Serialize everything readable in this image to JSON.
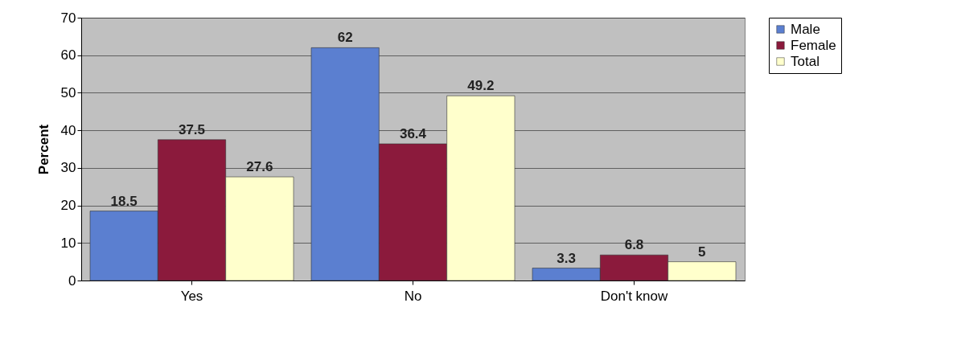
{
  "chart_data": {
    "type": "bar",
    "ylabel": "Percent",
    "categories": [
      "Yes",
      "No",
      "Don't know"
    ],
    "series": [
      {
        "name": "Male",
        "color": "#5b7fd0",
        "values": [
          18.5,
          62,
          3.3
        ]
      },
      {
        "name": "Female",
        "color": "#8b1a3c",
        "values": [
          37.5,
          36.4,
          6.8
        ]
      },
      {
        "name": "Total",
        "color": "#ffffcc",
        "values": [
          27.6,
          49.2,
          5
        ]
      }
    ],
    "ylim": [
      0,
      70
    ],
    "yticks": [
      0,
      10,
      20,
      30,
      40,
      50,
      60,
      70
    ],
    "grid": "y",
    "legend": "right",
    "data_labels": true
  }
}
